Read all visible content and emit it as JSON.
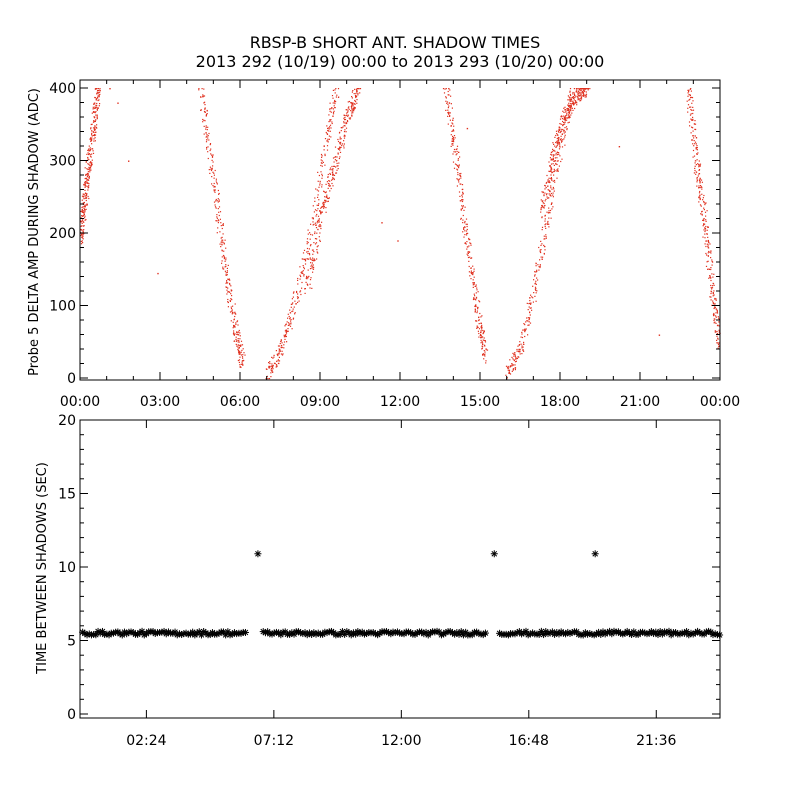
{
  "title": {
    "line1": "RBSP-B SHORT ANT. SHADOW TIMES",
    "line2": "2013 292 (10/19) 00:00 to 2013 293 (10/20) 00:00"
  },
  "colors": {
    "series_top": "#e0301e",
    "series_bottom": "#000000"
  },
  "chart_data": [
    {
      "type": "scatter",
      "ylabel": "Probe 5 DELTA AMP DURING SHADOW (ADC)",
      "xlabel": "",
      "x_unit": "hours",
      "xlim": [
        0,
        24
      ],
      "ylim": [
        0,
        400
      ],
      "x_ticks": [
        0,
        3,
        6,
        9,
        12,
        15,
        18,
        21,
        24
      ],
      "x_tick_labels": [
        "00:00",
        "03:00",
        "06:00",
        "09:00",
        "12:00",
        "15:00",
        "18:00",
        "21:00",
        "00:00"
      ],
      "y_ticks": [
        0,
        100,
        200,
        300,
        400
      ],
      "y_tick_labels": [
        "0",
        "100",
        "200",
        "300",
        "400"
      ],
      "marker": "dot",
      "color": "#e0301e",
      "segments": [
        {
          "x": [
            0.0,
            0.15,
            0.3,
            0.5,
            0.65
          ],
          "y": [
            190,
            240,
            290,
            350,
            400
          ]
        },
        {
          "x": [
            4.5,
            5.0,
            5.4,
            5.8,
            6.1
          ],
          "y": [
            400,
            280,
            160,
            70,
            20
          ]
        },
        {
          "x": [
            7.0,
            7.5,
            8.0,
            8.6,
            9.2,
            9.6
          ],
          "y": [
            5,
            40,
            100,
            190,
            320,
            400
          ]
        },
        {
          "x": [
            8.5,
            9.0,
            9.5,
            10.0,
            10.4
          ],
          "y": [
            120,
            220,
            290,
            360,
            400
          ]
        },
        {
          "x": [
            13.7,
            14.1,
            14.5,
            14.9,
            15.2
          ],
          "y": [
            400,
            300,
            190,
            90,
            30
          ]
        },
        {
          "x": [
            16.0,
            16.5,
            17.0,
            17.5,
            18.0,
            18.5
          ],
          "y": [
            5,
            40,
            120,
            220,
            320,
            400
          ]
        },
        {
          "x": [
            17.3,
            17.7,
            18.1,
            18.6,
            19.0
          ],
          "y": [
            230,
            300,
            360,
            390,
            400
          ]
        },
        {
          "x": [
            22.8,
            23.1,
            23.4,
            23.7,
            24.0
          ],
          "y": [
            400,
            300,
            220,
            120,
            40
          ]
        }
      ],
      "outliers": {
        "x": [
          1.1,
          1.4,
          1.8,
          2.9,
          11.3,
          11.9,
          14.5,
          16.3,
          20.2,
          21.7
        ],
        "y": [
          400,
          380,
          300,
          145,
          215,
          190,
          345,
          15,
          320,
          60
        ]
      }
    },
    {
      "type": "scatter",
      "ylabel": "TIME BETWEEN SHADOWS (SEC)",
      "xlabel": "",
      "x_unit": "hours",
      "xlim": [
        -0.1,
        24.0
      ],
      "ylim": [
        0,
        20
      ],
      "x_ticks": [
        2.4,
        7.2,
        12.0,
        16.8,
        21.6
      ],
      "x_tick_labels": [
        "02:24",
        "07:12",
        "12:00",
        "16:48",
        "21:36"
      ],
      "y_ticks": [
        0,
        5,
        10,
        15,
        20
      ],
      "y_tick_labels": [
        "0",
        "5",
        "10",
        "15",
        "20"
      ],
      "marker": "asterisk",
      "color": "#000000",
      "bands": [
        {
          "x_start": 0.0,
          "x_end": 6.2,
          "y": 5.5
        },
        {
          "x_start": 6.8,
          "x_end": 15.2,
          "y": 5.5
        },
        {
          "x_start": 15.7,
          "x_end": 24.0,
          "y": 5.5
        }
      ],
      "points": {
        "x": [
          6.6,
          15.5,
          19.3
        ],
        "y": [
          10.9,
          10.9,
          10.9
        ]
      }
    }
  ]
}
